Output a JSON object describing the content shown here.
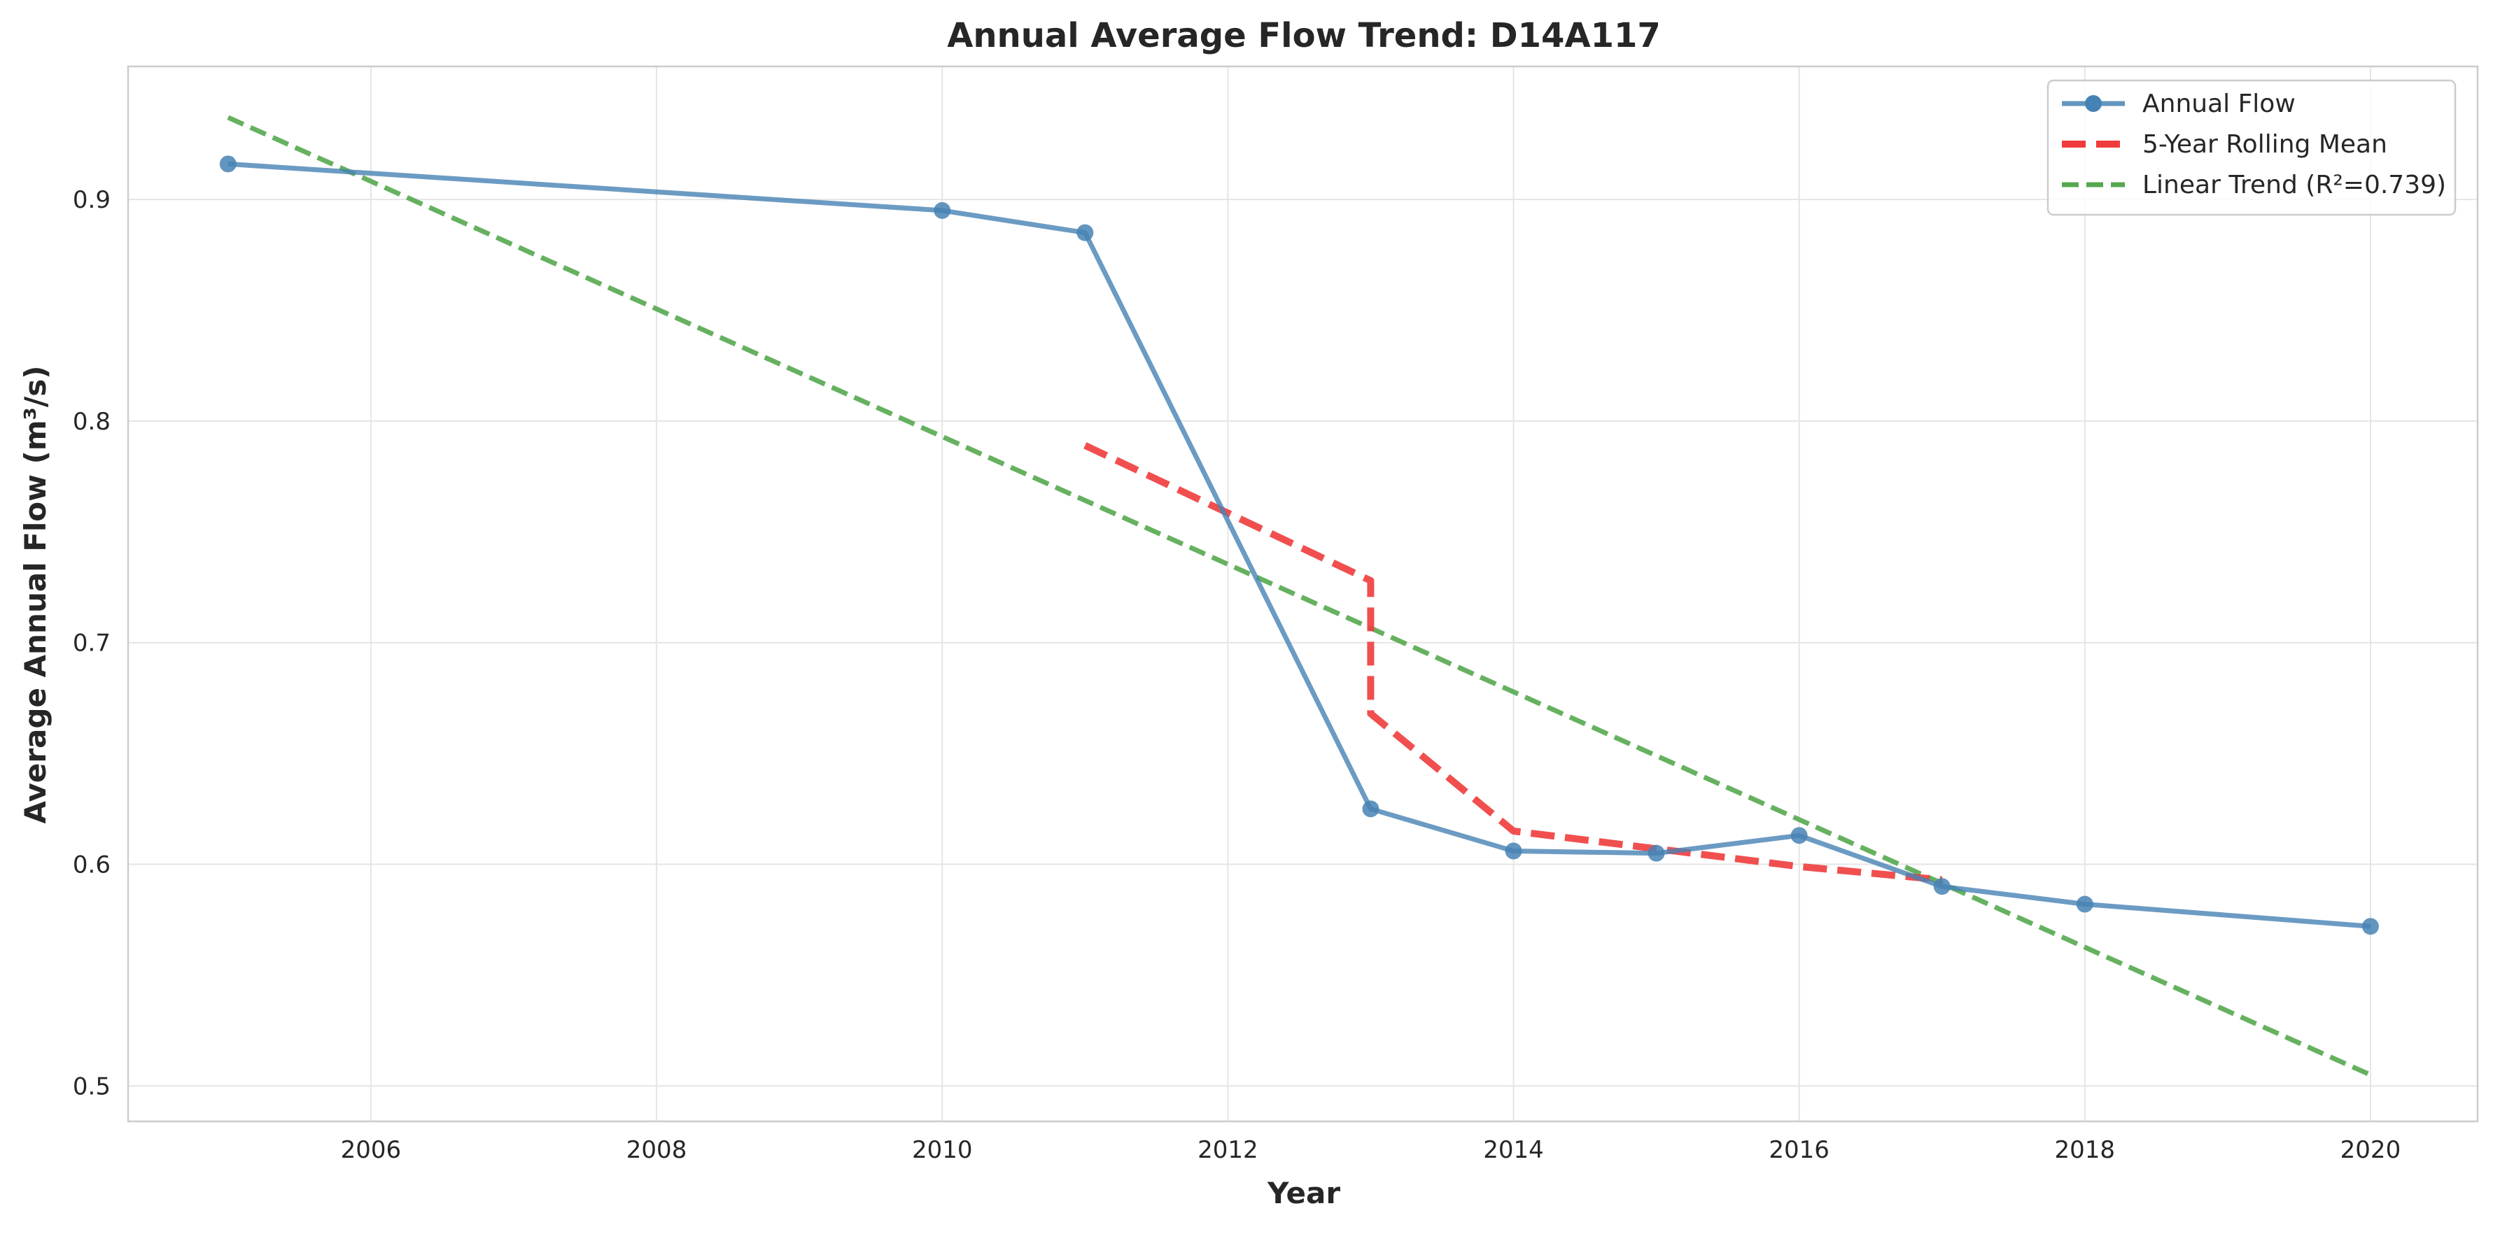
{
  "chart_data": {
    "type": "line",
    "title": "Annual Average Flow Trend: D14A117",
    "xlabel": "Year",
    "ylabel": "Average Annual Flow (m³/s)",
    "xlim": [
      2004.3,
      2020.75
    ],
    "ylim": [
      0.484,
      0.96
    ],
    "x_ticks": [
      2006,
      2008,
      2010,
      2012,
      2014,
      2016,
      2018,
      2020
    ],
    "y_ticks": [
      0.5,
      0.6,
      0.7,
      0.8,
      0.9
    ],
    "y_tick_labels": [
      "0.5",
      "0.6",
      "0.7",
      "0.8",
      "0.9"
    ],
    "grid": true,
    "legend_position": "top-right",
    "series": [
      {
        "name": "Annual Flow",
        "style": "solid-markers",
        "color": "#4682b4",
        "points": [
          [
            2005,
            0.916
          ],
          [
            2010,
            0.895
          ],
          [
            2011,
            0.885
          ],
          [
            2013,
            0.625
          ],
          [
            2014,
            0.606
          ],
          [
            2015,
            0.605
          ],
          [
            2016,
            0.613
          ],
          [
            2017,
            0.59
          ],
          [
            2018,
            0.582
          ],
          [
            2020,
            0.572
          ]
        ]
      },
      {
        "name": "5-Year Rolling Mean",
        "style": "dashed",
        "color": "#f03c3c",
        "points": [
          [
            2011,
            0.789
          ],
          [
            2013,
            0.728
          ],
          [
            2013,
            0.668
          ],
          [
            2014,
            0.615
          ],
          [
            2015,
            0.607
          ],
          [
            2016,
            0.599
          ],
          [
            2017,
            0.593
          ]
        ]
      },
      {
        "name": "Linear Trend (R²=0.739)",
        "style": "dashed",
        "color": "#55a84f",
        "points": [
          [
            2005,
            0.937
          ],
          [
            2020,
            0.505
          ]
        ]
      }
    ]
  }
}
